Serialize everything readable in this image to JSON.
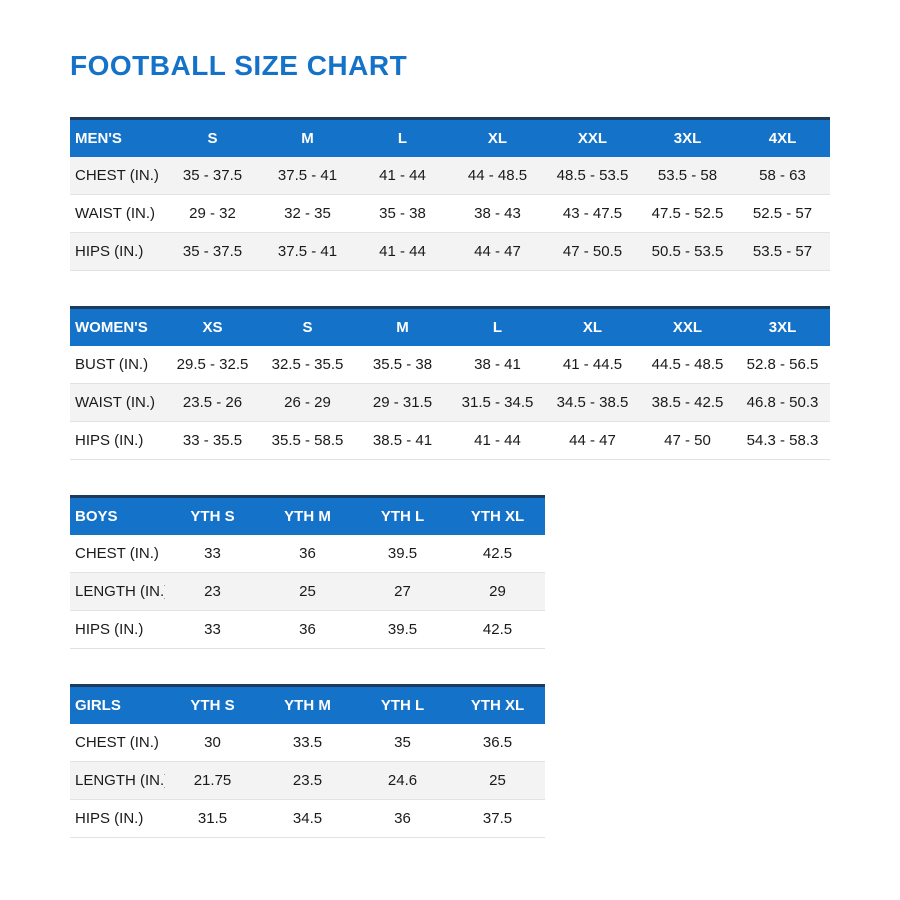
{
  "page": {
    "title": "FOOTBALL SIZE CHART"
  },
  "colors": {
    "title_blue": "#1472c8",
    "header_blue": "#1472c8",
    "header_text": "#ffffff",
    "navy_top_border": "#1b3b5f",
    "stripe_gray": "#f3f3f4",
    "body_text": "#1a1a1a"
  },
  "tables": [
    {
      "name": "MEN'S",
      "columns": [
        "S",
        "M",
        "L",
        "XL",
        "XXL",
        "3XL",
        "4XL"
      ],
      "rows": [
        {
          "label": "CHEST (IN.)",
          "values": [
            "35 - 37.5",
            "37.5 - 41",
            "41 - 44",
            "44 - 48.5",
            "48.5 - 53.5",
            "53.5 - 58",
            "58 - 63"
          ]
        },
        {
          "label": "WAIST (IN.)",
          "values": [
            "29 - 32",
            "32 - 35",
            "35 - 38",
            "38 - 43",
            "43 - 47.5",
            "47.5 - 52.5",
            "52.5 - 57"
          ]
        },
        {
          "label": "HIPS (IN.)",
          "values": [
            "35 - 37.5",
            "37.5 - 41",
            "41 - 44",
            "44 - 47",
            "47 - 50.5",
            "50.5 - 53.5",
            "53.5 - 57"
          ]
        }
      ],
      "stripe_rows": [
        0,
        2
      ],
      "narrow": false
    },
    {
      "name": "WOMEN'S",
      "columns": [
        "XS",
        "S",
        "M",
        "L",
        "XL",
        "XXL",
        "3XL"
      ],
      "rows": [
        {
          "label": "BUST (IN.)",
          "values": [
            "29.5 - 32.5",
            "32.5 - 35.5",
            "35.5 - 38",
            "38 - 41",
            "41 - 44.5",
            "44.5 - 48.5",
            "52.8 - 56.5"
          ]
        },
        {
          "label": "WAIST (IN.)",
          "values": [
            "23.5 - 26",
            "26 - 29",
            "29 - 31.5",
            "31.5 - 34.5",
            "34.5 - 38.5",
            "38.5 - 42.5",
            "46.8 - 50.3"
          ]
        },
        {
          "label": "HIPS (IN.)",
          "values": [
            "33 - 35.5",
            "35.5 - 58.5",
            "38.5 - 41",
            "41 - 44",
            "44 - 47",
            "47 - 50",
            "54.3 - 58.3"
          ]
        }
      ],
      "stripe_rows": [
        1
      ],
      "narrow": false
    },
    {
      "name": "BOYS",
      "columns": [
        "YTH S",
        "YTH M",
        "YTH L",
        "YTH XL"
      ],
      "rows": [
        {
          "label": "CHEST (IN.)",
          "values": [
            "33",
            "36",
            "39.5",
            "42.5"
          ]
        },
        {
          "label": "LENGTH (IN.)",
          "values": [
            "23",
            "25",
            "27",
            "29"
          ]
        },
        {
          "label": "HIPS (IN.)",
          "values": [
            "33",
            "36",
            "39.5",
            "42.5"
          ]
        }
      ],
      "stripe_rows": [
        1
      ],
      "narrow": true
    },
    {
      "name": "GIRLS",
      "columns": [
        "YTH S",
        "YTH M",
        "YTH L",
        "YTH XL"
      ],
      "rows": [
        {
          "label": "CHEST (IN.)",
          "values": [
            "30",
            "33.5",
            "35",
            "36.5"
          ]
        },
        {
          "label": "LENGTH (IN.)",
          "values": [
            "21.75",
            "23.5",
            "24.6",
            "25"
          ]
        },
        {
          "label": "HIPS (IN.)",
          "values": [
            "31.5",
            "34.5",
            "36",
            "37.5"
          ]
        }
      ],
      "stripe_rows": [
        1
      ],
      "narrow": true
    }
  ]
}
